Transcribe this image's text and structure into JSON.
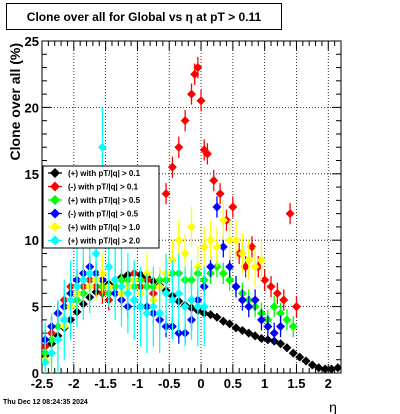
{
  "chart_data": {
    "type": "scatter",
    "title": "Clone  over all for Global vs    η  at pT > 0.11",
    "xlabel": "η",
    "ylabel": "Clone  over all (%)",
    "xlim": [
      -2.5,
      2.2
    ],
    "ylim": [
      0,
      25
    ],
    "xticks": [
      "-2.5",
      "-2",
      "-1.5",
      "-1",
      "-0.5",
      "0",
      "0.5",
      "1",
      "1.5",
      "2"
    ],
    "yticks": [
      "0",
      "5",
      "10",
      "15",
      "20",
      "25"
    ],
    "grid": true,
    "legend_position": "left-middle",
    "timestamp": "Thu Dec 12 08:24:35 2024",
    "series": [
      {
        "name": "(+) with pT/|q| > 0.1",
        "color": "#000000",
        "x": [
          -2.45,
          -2.35,
          -2.25,
          -2.15,
          -2.05,
          -1.95,
          -1.85,
          -1.75,
          -1.65,
          -1.55,
          -1.45,
          -1.35,
          -1.25,
          -1.15,
          -1.05,
          -0.95,
          -0.85,
          -0.75,
          -0.65,
          -0.55,
          -0.45,
          -0.35,
          -0.25,
          -0.15,
          -0.05,
          0.05,
          0.15,
          0.25,
          0.35,
          0.45,
          0.55,
          0.65,
          0.75,
          0.85,
          0.95,
          1.05,
          1.15,
          1.25,
          1.35,
          1.45,
          1.55,
          1.65,
          1.75,
          1.85,
          1.95,
          2.05,
          2.15
        ],
        "y": [
          1.3,
          2.2,
          2.8,
          3.4,
          4.0,
          4.6,
          5.2,
          5.7,
          6.1,
          6.5,
          6.7,
          7.0,
          7.2,
          7.4,
          7.5,
          7.4,
          7.2,
          6.9,
          6.6,
          6.2,
          5.8,
          5.4,
          5.1,
          4.9,
          4.7,
          4.5,
          4.4,
          4.2,
          3.9,
          3.7,
          3.4,
          3.2,
          3.0,
          2.8,
          2.6,
          2.5,
          2.4,
          2.2,
          1.9,
          1.5,
          1.2,
          0.9,
          0.6,
          0.4,
          0.3,
          0.3,
          0.4
        ],
        "err": [
          0.3,
          0.3,
          0.3,
          0.3,
          0.3,
          0.3,
          0.3,
          0.3,
          0.3,
          0.3,
          0.3,
          0.3,
          0.3,
          0.3,
          0.3,
          0.3,
          0.3,
          0.3,
          0.3,
          0.3,
          0.3,
          0.3,
          0.3,
          0.3,
          0.3,
          0.3,
          0.3,
          0.3,
          0.3,
          0.3,
          0.3,
          0.3,
          0.3,
          0.3,
          0.3,
          0.3,
          0.3,
          0.3,
          0.3,
          0.3,
          0.3,
          0.3,
          0.3,
          0.3,
          0.3,
          0.3,
          0.3
        ]
      },
      {
        "name": "(-) with pT/|q| > 0.1",
        "color": "#ff0000",
        "x": [
          -2.45,
          -2.35,
          -2.25,
          -2.15,
          -2.05,
          -1.95,
          -1.85,
          -1.75,
          -1.65,
          -1.55,
          -1.45,
          -1.35,
          -1.25,
          -1.15,
          -1.05,
          -0.95,
          -0.85,
          -0.75,
          -0.65,
          -0.55,
          -0.45,
          -0.35,
          -0.25,
          -0.15,
          -0.1,
          -0.05,
          0.0,
          0.05,
          0.1,
          0.2,
          0.3,
          0.4,
          0.5,
          0.6,
          0.7,
          0.8,
          0.9,
          1.0,
          1.1,
          1.2,
          1.3,
          1.4,
          1.5
        ],
        "y": [
          2.0,
          3.0,
          4.5,
          5.5,
          6.5,
          6.0,
          6.5,
          7.0,
          6.5,
          6.0,
          5.5,
          6.5,
          7.0,
          6.5,
          7.5,
          6.5,
          7.0,
          6.0,
          6.5,
          13.5,
          15.5,
          17.0,
          19.0,
          21.0,
          22.5,
          23.0,
          20.5,
          16.8,
          16.5,
          14.5,
          13.5,
          11.5,
          12.5,
          9.0,
          8.0,
          9.5,
          8.0,
          7.0,
          6.5,
          6.0,
          5.5,
          12.0,
          5.0
        ],
        "err": [
          0.8,
          0.8,
          0.8,
          0.8,
          0.8,
          0.8,
          0.8,
          0.8,
          0.8,
          0.8,
          0.8,
          0.8,
          0.8,
          0.8,
          0.8,
          0.8,
          0.8,
          0.8,
          0.8,
          0.8,
          0.8,
          0.8,
          0.8,
          0.8,
          0.8,
          0.8,
          0.8,
          0.8,
          0.8,
          0.8,
          0.8,
          0.8,
          0.8,
          0.8,
          0.8,
          0.8,
          0.8,
          0.8,
          0.8,
          0.8,
          0.8,
          0.8,
          0.8
        ]
      },
      {
        "name": "(+) with pT/|q| > 0.5",
        "color": "#00ff00",
        "x": [
          -2.45,
          -2.35,
          -2.25,
          -2.15,
          -2.05,
          -1.95,
          -1.85,
          -1.75,
          -1.65,
          -1.55,
          -1.45,
          -1.35,
          -1.25,
          -1.15,
          -1.05,
          -0.95,
          -0.85,
          -0.75,
          -0.65,
          -0.55,
          -0.45,
          -0.35,
          -0.25,
          -0.15,
          -0.05,
          0.05,
          0.15,
          0.25,
          0.35,
          0.45,
          0.55,
          0.65,
          0.75,
          0.85,
          0.95,
          1.05,
          1.15,
          1.25,
          1.35,
          1.45
        ],
        "y": [
          1.5,
          2.5,
          3.5,
          4.0,
          5.0,
          5.5,
          6.0,
          6.5,
          7.0,
          6.5,
          6.0,
          6.5,
          7.0,
          7.0,
          6.5,
          7.0,
          6.5,
          6.5,
          7.0,
          7.0,
          7.5,
          7.5,
          7.0,
          7.0,
          7.5,
          7.0,
          7.5,
          8.0,
          7.5,
          7.0,
          6.5,
          6.0,
          5.5,
          5.0,
          4.5,
          4.0,
          5.0,
          4.5,
          4.0,
          3.5
        ],
        "err": [
          0.8,
          0.8,
          0.8,
          0.8,
          0.8,
          0.8,
          0.8,
          0.8,
          0.8,
          0.8,
          0.8,
          0.8,
          0.8,
          0.8,
          0.8,
          0.8,
          0.8,
          0.8,
          0.8,
          0.8,
          0.8,
          0.8,
          0.8,
          0.8,
          0.8,
          0.8,
          0.8,
          0.8,
          0.8,
          0.8,
          0.8,
          0.8,
          0.8,
          0.8,
          0.8,
          0.8,
          0.8,
          0.8,
          0.8,
          0.8
        ]
      },
      {
        "name": "(-) with pT/|q| > 0.5",
        "color": "#0000ff",
        "x": [
          -2.45,
          -2.35,
          -2.25,
          -2.15,
          -2.05,
          -1.95,
          -1.85,
          -1.75,
          -1.65,
          -1.55,
          -1.45,
          -1.35,
          -1.25,
          -1.15,
          -1.05,
          -0.95,
          -0.85,
          -0.75,
          -0.65,
          -0.55,
          -0.45,
          -0.35,
          -0.25,
          -0.15,
          -0.05,
          0.05,
          0.15,
          0.25,
          0.35,
          0.45,
          0.55,
          0.65,
          0.75,
          0.85,
          0.95,
          1.05,
          1.15,
          1.25
        ],
        "y": [
          2.5,
          3.5,
          4.5,
          5.0,
          6.0,
          7.0,
          7.5,
          8.0,
          7.5,
          7.0,
          6.5,
          6.0,
          5.5,
          5.0,
          5.5,
          5.0,
          5.0,
          4.5,
          4.0,
          3.5,
          3.5,
          3.0,
          3.0,
          4.0,
          5.5,
          6.5,
          8.0,
          12.5,
          9.5,
          8.0,
          6.5,
          5.5,
          5.0,
          5.5,
          4.0,
          3.5,
          3.0,
          3.5
        ],
        "err": [
          0.8,
          0.8,
          0.8,
          0.8,
          0.8,
          0.8,
          0.8,
          0.8,
          0.8,
          0.8,
          0.8,
          0.8,
          0.8,
          0.8,
          0.8,
          0.8,
          0.8,
          0.8,
          0.8,
          0.8,
          0.8,
          0.8,
          0.8,
          0.8,
          0.8,
          0.8,
          0.8,
          0.8,
          0.8,
          0.8,
          0.8,
          0.8,
          0.8,
          0.8,
          0.8,
          0.8,
          0.8,
          0.8
        ]
      },
      {
        "name": "(+) with pT/|q| > 1.0",
        "color": "#ffff00",
        "x": [
          -2.45,
          -2.35,
          -2.25,
          -2.15,
          -2.05,
          -1.95,
          -1.85,
          -1.75,
          -1.65,
          -1.55,
          -1.45,
          -1.35,
          -1.25,
          -1.15,
          -1.05,
          -0.95,
          -0.85,
          -0.75,
          -0.65,
          -0.55,
          -0.45,
          -0.35,
          -0.25,
          -0.15,
          -0.05,
          0.05,
          0.15,
          0.25,
          0.35,
          0.45,
          0.55,
          0.65,
          0.75,
          0.85,
          0.95
        ],
        "y": [
          1.0,
          1.5,
          2.5,
          3.5,
          5.0,
          6.0,
          7.0,
          6.5,
          7.0,
          7.5,
          6.5,
          7.0,
          6.0,
          6.5,
          7.0,
          6.0,
          7.5,
          5.5,
          6.5,
          7.5,
          8.5,
          10.0,
          9.0,
          11.0,
          8.0,
          9.5,
          10.0,
          9.5,
          11.5,
          10.0,
          10.0,
          9.0,
          8.5,
          8.0,
          8.5
        ],
        "err": [
          1.5,
          1.5,
          1.5,
          1.5,
          1.5,
          1.5,
          1.5,
          1.5,
          1.5,
          1.5,
          1.5,
          1.5,
          1.5,
          1.5,
          1.5,
          1.5,
          1.5,
          1.5,
          1.5,
          1.5,
          1.5,
          1.5,
          1.5,
          1.5,
          1.5,
          1.5,
          1.5,
          1.5,
          1.5,
          1.5,
          1.5,
          1.5,
          1.5,
          1.5,
          1.5
        ]
      },
      {
        "name": "(+) with pT/|q| > 2.0",
        "color": "#00ffff",
        "x": [
          -2.45,
          -2.35,
          -2.25,
          -2.15,
          -2.05,
          -1.95,
          -1.85,
          -1.75,
          -1.65,
          -1.55,
          -1.45,
          -1.35,
          -1.25,
          -1.15,
          -1.05,
          -0.95,
          -0.85,
          -0.75,
          -0.65,
          -0.55,
          -0.45,
          -0.35,
          -0.25,
          -0.15,
          -0.05,
          0.05
        ],
        "y": [
          0.8,
          1.5,
          2.5,
          4.0,
          5.5,
          6.5,
          7.0,
          7.5,
          9.0,
          17.0,
          8.0,
          7.0,
          6.5,
          6.0,
          5.5,
          5.0,
          4.5,
          5.0,
          4.5,
          6.0,
          5.5,
          6.0,
          5.0,
          5.5,
          5.0,
          5.0
        ],
        "err": [
          3.0,
          3.0,
          3.0,
          3.0,
          3.0,
          3.0,
          3.0,
          3.0,
          3.0,
          3.0,
          3.0,
          3.0,
          3.0,
          3.0,
          3.0,
          3.0,
          3.0,
          3.0,
          3.0,
          3.0,
          3.0,
          3.0,
          3.0,
          3.0,
          3.0,
          3.0
        ]
      }
    ]
  }
}
